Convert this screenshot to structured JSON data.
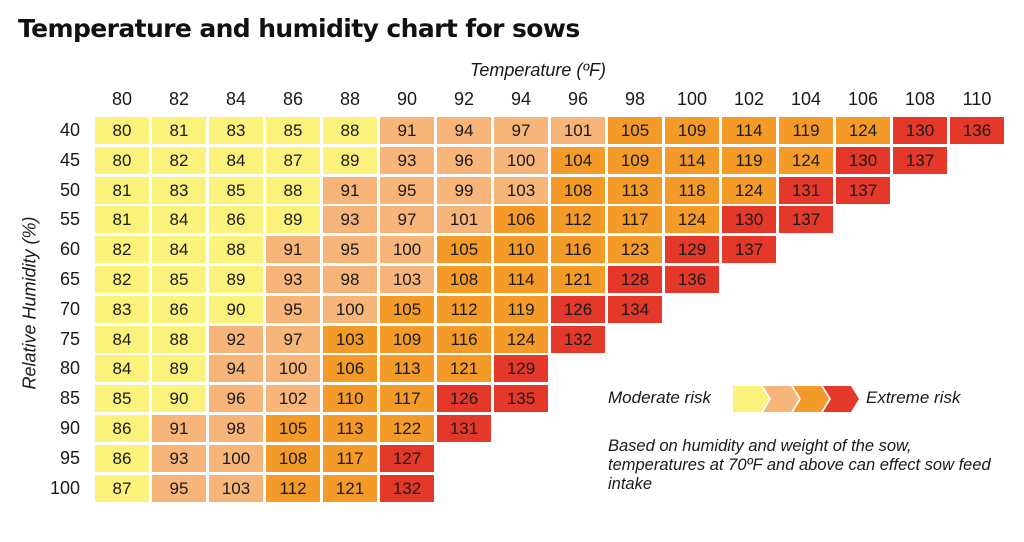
{
  "title": "Temperature and humidity chart for sows",
  "chart_data": {
    "type": "heatmap",
    "xlabel": "Temperature (ºF)",
    "ylabel": "Relative Humidity (%)",
    "x": [
      "80",
      "82",
      "84",
      "86",
      "88",
      "90",
      "92",
      "94",
      "96",
      "98",
      "100",
      "102",
      "104",
      "106",
      "108",
      "110"
    ],
    "y": [
      "40",
      "45",
      "50",
      "55",
      "60",
      "65",
      "70",
      "75",
      "80",
      "85",
      "90",
      "95",
      "100"
    ],
    "values": [
      [
        80,
        81,
        83,
        85,
        88,
        91,
        94,
        97,
        101,
        105,
        109,
        114,
        119,
        124,
        130,
        136
      ],
      [
        80,
        82,
        84,
        87,
        89,
        93,
        96,
        100,
        104,
        109,
        114,
        119,
        124,
        130,
        137
      ],
      [
        81,
        83,
        85,
        88,
        91,
        95,
        99,
        103,
        108,
        113,
        118,
        124,
        131,
        137
      ],
      [
        81,
        84,
        86,
        89,
        93,
        97,
        101,
        106,
        112,
        117,
        124,
        130,
        137
      ],
      [
        82,
        84,
        88,
        91,
        95,
        100,
        105,
        110,
        116,
        123,
        129,
        137
      ],
      [
        82,
        85,
        89,
        93,
        98,
        103,
        108,
        114,
        121,
        128,
        136
      ],
      [
        83,
        86,
        90,
        95,
        100,
        105,
        112,
        119,
        126,
        134
      ],
      [
        84,
        88,
        92,
        97,
        103,
        109,
        116,
        124,
        132
      ],
      [
        84,
        89,
        94,
        100,
        106,
        113,
        121,
        129
      ],
      [
        85,
        90,
        96,
        102,
        110,
        117,
        126,
        135
      ],
      [
        86,
        91,
        98,
        105,
        113,
        122,
        131
      ],
      [
        86,
        93,
        100,
        108,
        117,
        127
      ],
      [
        87,
        95,
        103,
        112,
        121,
        132
      ]
    ],
    "risk_levels": [
      [
        0,
        0,
        0,
        0,
        0,
        1,
        1,
        1,
        1,
        2,
        2,
        2,
        2,
        2,
        3,
        3
      ],
      [
        0,
        0,
        0,
        0,
        0,
        1,
        1,
        1,
        2,
        2,
        2,
        2,
        2,
        3,
        3
      ],
      [
        0,
        0,
        0,
        0,
        1,
        1,
        1,
        1,
        2,
        2,
        2,
        2,
        3,
        3
      ],
      [
        0,
        0,
        0,
        0,
        1,
        1,
        1,
        2,
        2,
        2,
        2,
        3,
        3
      ],
      [
        0,
        0,
        0,
        1,
        1,
        1,
        2,
        2,
        2,
        2,
        3,
        3
      ],
      [
        0,
        0,
        0,
        1,
        1,
        1,
        2,
        2,
        2,
        3,
        3
      ],
      [
        0,
        0,
        0,
        1,
        1,
        2,
        2,
        2,
        3,
        3
      ],
      [
        0,
        0,
        1,
        1,
        2,
        2,
        2,
        2,
        3
      ],
      [
        0,
        0,
        1,
        1,
        2,
        2,
        2,
        3
      ],
      [
        0,
        0,
        1,
        1,
        2,
        2,
        3,
        3
      ],
      [
        0,
        1,
        1,
        2,
        2,
        2,
        3
      ],
      [
        0,
        1,
        1,
        2,
        2,
        3
      ],
      [
        0,
        1,
        1,
        2,
        2,
        3
      ]
    ],
    "risk_colors": [
      "#faf27a",
      "#f7b57a",
      "#f39a28",
      "#e3382a"
    ],
    "legend": {
      "low_label": "Moderate risk",
      "high_label": "Extreme risk",
      "placement": "bottom-right"
    },
    "annotation": "Based on humidity and weight of the sow, temperatures at 70ºF and above can effect sow feed intake"
  }
}
